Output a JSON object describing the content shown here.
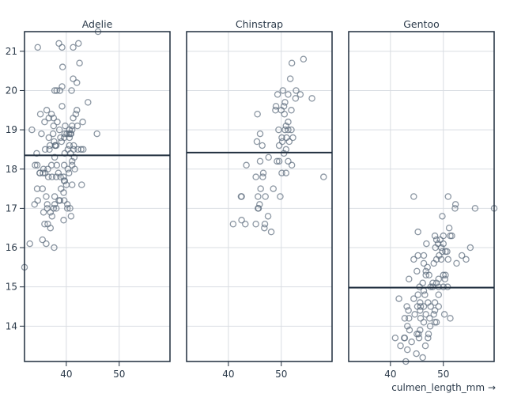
{
  "chart_data": {
    "type": "scatter",
    "facet_by": "species",
    "xlabel": "culmen_length_mm →",
    "ylabel": "",
    "xlim": [
      32.1,
      59.6
    ],
    "ylim": [
      13.1,
      21.5
    ],
    "x_ticks": [
      "40",
      "50"
    ],
    "y_ticks": [
      "14",
      "15",
      "16",
      "17",
      "18",
      "19",
      "20",
      "21"
    ],
    "grid": true,
    "marker": "hollow-circle",
    "colors": {
      "points": "#5b6b7c",
      "frame": "#1f2d3d",
      "mean_rule": "#1f2d3d",
      "grid": "#d9dde2"
    },
    "facets": [
      {
        "name": "Adelie",
        "mean_depth": 18.35,
        "points": [
          [
            39.1,
            18.7
          ],
          [
            39.5,
            17.4
          ],
          [
            40.3,
            18
          ],
          [
            36.7,
            19.3
          ],
          [
            39.3,
            20.6
          ],
          [
            38.9,
            17.8
          ],
          [
            39.2,
            19.6
          ],
          [
            34.1,
            18.1
          ],
          [
            42,
            20.2
          ],
          [
            37.8,
            17.1
          ],
          [
            37.8,
            17.3
          ],
          [
            41.1,
            17.6
          ],
          [
            38.6,
            21.2
          ],
          [
            34.6,
            21.1
          ],
          [
            36.6,
            17.8
          ],
          [
            38.7,
            19
          ],
          [
            42.5,
            20.7
          ],
          [
            34.4,
            18.4
          ],
          [
            46,
            21.5
          ],
          [
            37.8,
            18.3
          ],
          [
            37.7,
            18.7
          ],
          [
            35.9,
            19.2
          ],
          [
            38.2,
            18.1
          ],
          [
            38.8,
            17.2
          ],
          [
            35.3,
            18.9
          ],
          [
            40.6,
            18.6
          ],
          [
            40.5,
            17.9
          ],
          [
            37.9,
            18.6
          ],
          [
            40.5,
            18.9
          ],
          [
            39.5,
            16.7
          ],
          [
            37.2,
            18.1
          ],
          [
            39.5,
            17.8
          ],
          [
            40.9,
            18.9
          ],
          [
            36.4,
            17
          ],
          [
            39.2,
            21.1
          ],
          [
            38.8,
            20
          ],
          [
            42.2,
            18.5
          ],
          [
            37.6,
            19.3
          ],
          [
            39.8,
            19.1
          ],
          [
            36.5,
            18
          ],
          [
            40.8,
            18.4
          ],
          [
            36,
            18.5
          ],
          [
            44.1,
            19.7
          ],
          [
            37,
            16.9
          ],
          [
            39.6,
            18.8
          ],
          [
            41.1,
            19
          ],
          [
            37.5,
            18.9
          ],
          [
            36,
            17.9
          ],
          [
            42.3,
            21.2
          ],
          [
            39.6,
            17.7
          ],
          [
            40.1,
            18.9
          ],
          [
            35,
            17.9
          ],
          [
            42,
            19.5
          ],
          [
            34.5,
            18.1
          ],
          [
            41.4,
            18.6
          ],
          [
            39,
            17.5
          ],
          [
            40.6,
            18.8
          ],
          [
            36.5,
            16.6
          ],
          [
            37.6,
            19.1
          ],
          [
            35.7,
            16.9
          ],
          [
            41.3,
            21.1
          ],
          [
            37.6,
            17
          ],
          [
            41.1,
            18.2
          ],
          [
            36.4,
            17.1
          ],
          [
            41.6,
            18
          ],
          [
            35.5,
            16.2
          ],
          [
            41.1,
            19.1
          ],
          [
            35.9,
            16.6
          ],
          [
            41.8,
            19.4
          ],
          [
            33.5,
            19
          ],
          [
            39.7,
            18.4
          ],
          [
            39.6,
            17.2
          ],
          [
            45.8,
            18.9
          ],
          [
            35.5,
            17.5
          ],
          [
            42.8,
            18.5
          ],
          [
            40.9,
            16.8
          ],
          [
            37.2,
            19.4
          ],
          [
            36.2,
            16.1
          ],
          [
            42.1,
            19.1
          ],
          [
            34.6,
            17.2
          ],
          [
            42.9,
            17.6
          ],
          [
            36.7,
            18.8
          ],
          [
            35.1,
            19.4
          ],
          [
            37.3,
            17.8
          ],
          [
            41.3,
            20.3
          ],
          [
            36.3,
            19.5
          ],
          [
            36.9,
            18.6
          ],
          [
            38.3,
            19.2
          ],
          [
            38.9,
            18.8
          ],
          [
            35.7,
            18
          ],
          [
            41.1,
            18.1
          ],
          [
            34,
            17.1
          ],
          [
            39.6,
            18.1
          ],
          [
            36.2,
            17.3
          ],
          [
            40.8,
            18.9
          ],
          [
            38.1,
            18.6
          ],
          [
            40.3,
            18.5
          ],
          [
            33.1,
            16.1
          ],
          [
            43.2,
            18.5
          ],
          [
            35,
            17.9
          ],
          [
            41,
            20
          ],
          [
            37.7,
            16
          ],
          [
            37.8,
            20
          ],
          [
            37.9,
            18.6
          ],
          [
            39.7,
            18.9
          ],
          [
            38.6,
            17.2
          ],
          [
            38.2,
            20
          ],
          [
            38.1,
            17
          ],
          [
            41.3,
            19.3
          ],
          [
            38.1,
            17.8
          ],
          [
            39.2,
            20.1
          ],
          [
            37.3,
            16.8
          ],
          [
            32.1,
            15.5
          ],
          [
            40.2,
            17
          ],
          [
            41.4,
            18.5
          ],
          [
            40.6,
            19
          ],
          [
            38.5,
            17.9
          ],
          [
            37,
            16.5
          ],
          [
            39.7,
            17.7
          ],
          [
            40.2,
            17.1
          ],
          [
            43.1,
            19.2
          ],
          [
            41.5,
            18.3
          ],
          [
            34.5,
            17.5
          ],
          [
            36.8,
            18.5
          ],
          [
            40.7,
            17
          ],
          [
            35.6,
            17.9
          ],
          [
            40,
            17.6
          ]
        ]
      },
      {
        "name": "Chinstrap",
        "mean_depth": 18.42,
        "points": [
          [
            54.2,
            20.8
          ],
          [
            52,
            20.7
          ],
          [
            51.7,
            20.3
          ],
          [
            50.3,
            20
          ],
          [
            52.8,
            20
          ],
          [
            49.3,
            19.9
          ],
          [
            51.3,
            19.9
          ],
          [
            53.6,
            19.9
          ],
          [
            52.7,
            19.8
          ],
          [
            55.8,
            19.8
          ],
          [
            50.7,
            19.7
          ],
          [
            49,
            19.6
          ],
          [
            50.5,
            19.6
          ],
          [
            48.9,
            19.5
          ],
          [
            50,
            19.5
          ],
          [
            51.9,
            19.5
          ],
          [
            50.6,
            19.4
          ],
          [
            45.5,
            19.4
          ],
          [
            51.3,
            19.2
          ],
          [
            50.9,
            19.1
          ],
          [
            49.5,
            19
          ],
          [
            50.7,
            19
          ],
          [
            51.3,
            19
          ],
          [
            51.9,
            19
          ],
          [
            46,
            18.9
          ],
          [
            50.1,
            18.8
          ],
          [
            51,
            18.8
          ],
          [
            52.2,
            18.8
          ],
          [
            45.4,
            18.7
          ],
          [
            51.5,
            18.7
          ],
          [
            50.2,
            18.7
          ],
          [
            46.4,
            18.6
          ],
          [
            49.6,
            18.6
          ],
          [
            50.9,
            18.5
          ],
          [
            50.5,
            18.4
          ],
          [
            47.6,
            18.3
          ],
          [
            46,
            18.2
          ],
          [
            49.2,
            18.2
          ],
          [
            49.6,
            18.2
          ],
          [
            51.3,
            18.2
          ],
          [
            43.4,
            18.1
          ],
          [
            52,
            18.1
          ],
          [
            46.6,
            17.9
          ],
          [
            46.5,
            17.8
          ],
          [
            45.2,
            17.8
          ],
          [
            50.1,
            17.9
          ],
          [
            50.9,
            17.9
          ],
          [
            58,
            17.8
          ],
          [
            46.1,
            17.5
          ],
          [
            48.5,
            17.5
          ],
          [
            42.4,
            17.3
          ],
          [
            42.5,
            17.3
          ],
          [
            45.6,
            17.3
          ],
          [
            47,
            17.3
          ],
          [
            49.8,
            17.3
          ],
          [
            45.9,
            17.1
          ],
          [
            45.6,
            17
          ],
          [
            45.7,
            17
          ],
          [
            47.5,
            16.8
          ],
          [
            42.5,
            16.7
          ],
          [
            40.9,
            16.6
          ],
          [
            43.2,
            16.6
          ],
          [
            45.2,
            16.6
          ],
          [
            46.9,
            16.6
          ],
          [
            46.8,
            16.5
          ],
          [
            48.1,
            16.4
          ]
        ]
      },
      {
        "name": "Gentoo",
        "mean_depth": 14.98,
        "points": [
          [
            44.4,
            17.3
          ],
          [
            50.9,
            17.3
          ],
          [
            52.3,
            17.1
          ],
          [
            52.2,
            17
          ],
          [
            56,
            17
          ],
          [
            59.6,
            17
          ],
          [
            49.8,
            16.8
          ],
          [
            51.1,
            16.5
          ],
          [
            45.2,
            16.4
          ],
          [
            48.4,
            16.3
          ],
          [
            50,
            16.3
          ],
          [
            51.3,
            16.3
          ],
          [
            51.6,
            16.3
          ],
          [
            48.7,
            16.2
          ],
          [
            49.4,
            16.2
          ],
          [
            46.8,
            16.1
          ],
          [
            49,
            16.1
          ],
          [
            50,
            16.1
          ],
          [
            48.5,
            16
          ],
          [
            49.6,
            16
          ],
          [
            55.1,
            16
          ],
          [
            49.8,
            15.9
          ],
          [
            50.4,
            15.9
          ],
          [
            50.7,
            15.9
          ],
          [
            45.2,
            15.8
          ],
          [
            46.3,
            15.8
          ],
          [
            49.2,
            15.8
          ],
          [
            53.5,
            15.8
          ],
          [
            44.4,
            15.7
          ],
          [
            48.7,
            15.7
          ],
          [
            49.6,
            15.7
          ],
          [
            50.9,
            15.7
          ],
          [
            54.3,
            15.7
          ],
          [
            46.3,
            15.6
          ],
          [
            48.2,
            15.6
          ],
          [
            52.5,
            15.6
          ],
          [
            47,
            15.5
          ],
          [
            45,
            15.4
          ],
          [
            46.7,
            15.4
          ],
          [
            46.7,
            15.3
          ],
          [
            47.3,
            15.3
          ],
          [
            50,
            15.3
          ],
          [
            50.4,
            15.3
          ],
          [
            43.5,
            15.2
          ],
          [
            49.1,
            15.2
          ],
          [
            50.3,
            15.2
          ],
          [
            46.1,
            15.1
          ],
          [
            48,
            15.1
          ],
          [
            48.7,
            15.1
          ],
          [
            45.5,
            15
          ],
          [
            47.6,
            15
          ],
          [
            48,
            15
          ],
          [
            49.1,
            15
          ],
          [
            50,
            15
          ],
          [
            50.8,
            15
          ],
          [
            46.3,
            14.9
          ],
          [
            45.2,
            14.8
          ],
          [
            46.5,
            14.8
          ],
          [
            49.1,
            14.8
          ],
          [
            41.6,
            14.7
          ],
          [
            44.4,
            14.7
          ],
          [
            45.6,
            14.6
          ],
          [
            47.1,
            14.6
          ],
          [
            48.4,
            14.6
          ],
          [
            43.1,
            14.5
          ],
          [
            45.1,
            14.5
          ],
          [
            45.7,
            14.5
          ],
          [
            46.3,
            14.5
          ],
          [
            47.6,
            14.5
          ],
          [
            49.1,
            14.5
          ],
          [
            43.4,
            14.4
          ],
          [
            45.6,
            14.4
          ],
          [
            48.4,
            14.4
          ],
          [
            44.6,
            14.3
          ],
          [
            46.7,
            14.3
          ],
          [
            48.2,
            14.3
          ],
          [
            50.2,
            14.3
          ],
          [
            42.7,
            14.2
          ],
          [
            43.5,
            14.2
          ],
          [
            45.7,
            14.2
          ],
          [
            47.4,
            14.2
          ],
          [
            51.3,
            14.2
          ],
          [
            46.3,
            14.1
          ],
          [
            48.4,
            14.1
          ],
          [
            48.7,
            14.1
          ],
          [
            43.2,
            14
          ],
          [
            47.5,
            14
          ],
          [
            43.6,
            13.9
          ],
          [
            45.6,
            13.9
          ],
          [
            45,
            13.8
          ],
          [
            45.3,
            13.8
          ],
          [
            47.2,
            13.8
          ],
          [
            40.9,
            13.7
          ],
          [
            42.6,
            13.7
          ],
          [
            42.7,
            13.7
          ],
          [
            45.4,
            13.7
          ],
          [
            47.1,
            13.7
          ],
          [
            44,
            13.6
          ],
          [
            41.9,
            13.5
          ],
          [
            46.6,
            13.5
          ],
          [
            43.2,
            13.4
          ],
          [
            44.9,
            13.3
          ],
          [
            46.1,
            13.2
          ],
          [
            42.9,
            13.1
          ]
        ]
      }
    ]
  }
}
